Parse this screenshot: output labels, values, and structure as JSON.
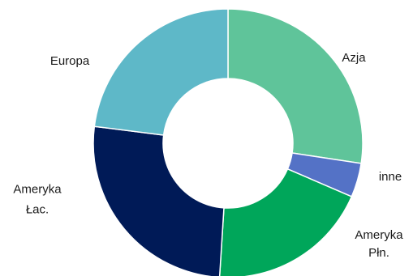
{
  "chart_data": {
    "type": "pie",
    "variant": "donut",
    "title": "",
    "slices": [
      {
        "label": "Azja",
        "label_lines": [
          "Azja"
        ],
        "value": 27.4,
        "color": "#5FC49A"
      },
      {
        "label": "inne",
        "label_lines": [
          "inne"
        ],
        "value": 4.1,
        "color": "#5472C6"
      },
      {
        "label": "Ameryka Płn.",
        "label_lines": [
          "Ameryka",
          "Płn."
        ],
        "value": 19.5,
        "color": "#00A65A"
      },
      {
        "label": "Ameryka Łac.",
        "label_lines": [
          "Ameryka",
          "Łac."
        ],
        "value": 26.0,
        "color": "#001A57"
      },
      {
        "label": "Europa",
        "label_lines": [
          "Europa"
        ],
        "value": 23.0,
        "color": "#5EB8C8"
      }
    ],
    "legend": "none",
    "start_angle_deg": 0,
    "direction": "clockwise"
  }
}
